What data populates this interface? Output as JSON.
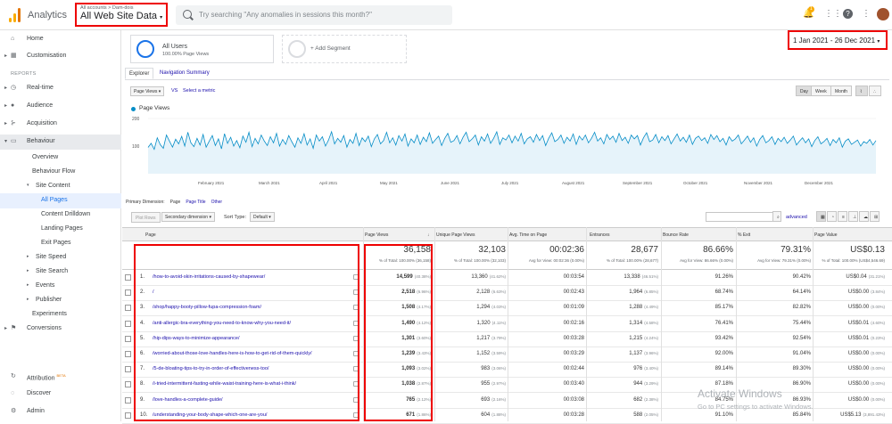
{
  "topbar": {
    "app_name": "Analytics",
    "account_crumb": "All accounts > Dam-dois",
    "property": "All Web Site Data",
    "search_placeholder": "Try searching \"Any anomalies in sessions this month?\"",
    "notif_count": "1"
  },
  "sidebar": {
    "home": "Home",
    "customisation": "Customisation",
    "reports_label": "REPORTS",
    "realtime": "Real-time",
    "audience": "Audience",
    "acquisition": "Acquisition",
    "behaviour": "Behaviour",
    "overview": "Overview",
    "behaviour_flow": "Behaviour Flow",
    "site_content": "Site Content",
    "all_pages": "All Pages",
    "content_drilldown": "Content Drilldown",
    "landing_pages": "Landing Pages",
    "exit_pages": "Exit Pages",
    "site_speed": "Site Speed",
    "site_search": "Site Search",
    "events": "Events",
    "publisher": "Publisher",
    "experiments": "Experiments",
    "conversions": "Conversions",
    "attribution": "Attribution",
    "attribution_badge": "BETA",
    "discover": "Discover",
    "admin": "Admin"
  },
  "segments": {
    "all_users": "All Users",
    "all_users_sub": "100.00% Page Views",
    "add_segment": "+ Add Segment"
  },
  "date_range": "1 Jan 2021 - 26 Dec 2021",
  "tabs": [
    "Explorer",
    "Navigation Summary"
  ],
  "controls": {
    "metric": "Page Views",
    "vs": "VS",
    "select_metric": "Select a metric",
    "day": "Day",
    "week": "Week",
    "month": "Month"
  },
  "chart_data": {
    "type": "line",
    "legend": "Page Views",
    "y_ticks": [
      "200",
      "100"
    ],
    "ylim": [
      0,
      200
    ],
    "x_labels": [
      "February 2021",
      "March 2021",
      "April 2021",
      "May 2021",
      "June 2021",
      "July 2021",
      "August 2021",
      "September 2021",
      "October 2021",
      "November 2021",
      "December 2021"
    ],
    "series": [
      {
        "values": [
          95,
          110,
          88,
          130,
          105,
          92,
          140,
          118,
          96,
          125,
          108,
          135,
          100,
          150,
          112,
          98,
          128,
          104,
          142,
          96,
          118,
          138,
          102,
          126,
          90,
          145,
          110,
          132,
          100,
          120,
          94,
          136,
          114,
          150,
          98,
          128,
          108,
          140,
          118,
          102,
          134,
          112,
          146,
          100,
          124,
          106,
          138,
          116,
          96,
          130,
          110,
          145,
          104,
          126,
          92,
          140,
          118,
          134,
          100,
          122,
          152,
          108,
          128,
          114,
          138,
          96,
          124,
          110,
          146,
          102,
          130,
          116,
          136,
          98,
          126,
          142,
          108,
          120,
          150,
          112,
          130,
          104,
          138,
          118,
          144,
          100,
          126,
          112,
          140,
          106,
          132,
          116,
          148,
          110,
          124,
          136,
          102,
          128,
          146,
          114,
          120,
          138,
          108,
          132,
          150,
          116,
          126,
          140,
          104,
          134,
          118,
          144,
          110,
          128,
          152,
          106,
          130,
          122,
          140,
          112,
          136,
          118,
          146,
          108,
          126,
          134,
          114,
          142,
          120,
          138,
          102,
          128,
          148,
          116,
          124,
          140,
          110,
          132,
          118,
          144,
          106,
          136,
          122,
          140,
          112,
          128,
          150,
          118,
          130,
          108,
          142,
          124,
          136,
          114,
          146,
          120,
          132,
          110,
          140,
          126,
          138,
          104,
          130,
          148,
          116,
          122,
          142,
          112,
          134,
          120,
          138,
          108,
          126,
          144,
          118,
          132,
          114,
          140,
          106,
          128,
          136,
          120,
          130,
          110,
          142,
          124,
          138,
          116,
          128,
          104,
          134,
          118,
          126,
          140,
          108,
          122,
          136,
          114,
          130,
          100,
          124,
          138,
          112,
          120,
          134,
          106,
          128,
          116,
          132,
          110,
          122,
          136,
          104,
          118,
          130,
          112,
          126,
          98,
          120,
          134,
          108,
          116,
          128,
          102,
          124,
          112,
          130,
          96,
          118,
          126,
          106,
          114,
          122,
          100,
          116,
          110,
          124,
          104,
          120
        ]
      }
    ]
  },
  "primary_dimension": {
    "label": "Primary Dimension:",
    "page": "Page",
    "page_title": "Page Title",
    "other": "Other"
  },
  "filter": {
    "plot_rows": "Plot Rows",
    "secondary_dim": "Secondary dimension",
    "sort_type_label": "Sort Type:",
    "sort_type": "Default",
    "advanced": "advanced"
  },
  "table": {
    "headers": [
      "Page",
      "Page Views",
      "Unique Page Views",
      "Avg. Time on Page",
      "Entrances",
      "Bounce Rate",
      "% Exit",
      "Page Value"
    ],
    "totals": {
      "page_views": "36,158",
      "page_views_sub": "% of Total: 100.00% (36,158)",
      "unique": "32,103",
      "unique_sub": "% of Total: 100.00% (32,103)",
      "avg_time": "00:02:36",
      "avg_time_sub": "Avg for View: 00:02:36 (0.00%)",
      "entrances": "28,677",
      "entrances_sub": "% of Total: 100.00% (28,677)",
      "bounce": "86.66%",
      "bounce_sub": "Avg for View: 86.66% (0.00%)",
      "exit": "79.31%",
      "exit_sub": "Avg for View: 79.31% (0.00%)",
      "value": "US$0.13",
      "value_sub": "% of Total: 100.00% (US$4,546.69)"
    },
    "rows": [
      {
        "idx": "1.",
        "page": "/how-to-avoid-skin-irritations-caused-by-shapewear/",
        "pv": "14,599",
        "pv_pct": "(40.38%)",
        "upv": "13,360",
        "upv_pct": "(41.62%)",
        "avg": "00:03:54",
        "ent": "13,338",
        "ent_pct": "(46.51%)",
        "bounce": "91.26%",
        "exit": "90.42%",
        "value": "US$0.04",
        "value_pct": "(31.21%)"
      },
      {
        "idx": "2.",
        "page": "/",
        "pv": "2,518",
        "pv_pct": "(6.96%)",
        "upv": "2,128",
        "upv_pct": "(6.63%)",
        "avg": "00:02:43",
        "ent": "1,964",
        "ent_pct": "(6.85%)",
        "bounce": "68.74%",
        "exit": "64.14%",
        "value": "US$0.00",
        "value_pct": "(3.84%)"
      },
      {
        "idx": "3.",
        "page": "/shop/happy-booty-pillow-fupa-compression-foam/",
        "pv": "1,508",
        "pv_pct": "(4.17%)",
        "upv": "1,294",
        "upv_pct": "(4.03%)",
        "avg": "00:01:09",
        "ent": "1,288",
        "ent_pct": "(4.49%)",
        "bounce": "85.17%",
        "exit": "82.82%",
        "value": "US$0.00",
        "value_pct": "(0.00%)"
      },
      {
        "idx": "4.",
        "page": "/anti-allergic-bra-everything-you-need-to-know-why-you-need-it/",
        "pv": "1,490",
        "pv_pct": "(4.12%)",
        "upv": "1,320",
        "upv_pct": "(4.11%)",
        "avg": "00:02:16",
        "ent": "1,314",
        "ent_pct": "(4.58%)",
        "bounce": "76.41%",
        "exit": "75.44%",
        "value": "US$0.01",
        "value_pct": "(4.60%)"
      },
      {
        "idx": "5.",
        "page": "/hip-dips-ways-to-minimize-appearance/",
        "pv": "1,301",
        "pv_pct": "(3.60%)",
        "upv": "1,217",
        "upv_pct": "(3.79%)",
        "avg": "00:03:28",
        "ent": "1,215",
        "ent_pct": "(4.24%)",
        "bounce": "93.42%",
        "exit": "92.54%",
        "value": "US$0.01",
        "value_pct": "(0.23%)"
      },
      {
        "idx": "6.",
        "page": "/worried-about-those-love-handles-here-is-how-to-get-rid-of-them-quickly/",
        "pv": "1,239",
        "pv_pct": "(3.43%)",
        "upv": "1,152",
        "upv_pct": "(3.59%)",
        "avg": "00:03:29",
        "ent": "1,137",
        "ent_pct": "(3.96%)",
        "bounce": "92.00%",
        "exit": "91.04%",
        "value": "US$0.00",
        "value_pct": "(0.00%)"
      },
      {
        "idx": "7.",
        "page": "/5-de-bloating-tips-to-try-in-order-of-effectiveness-too/",
        "pv": "1,093",
        "pv_pct": "(3.02%)",
        "upv": "983",
        "upv_pct": "(3.06%)",
        "avg": "00:02:44",
        "ent": "976",
        "ent_pct": "(3.40%)",
        "bounce": "89.14%",
        "exit": "89.30%",
        "value": "US$0.00",
        "value_pct": "(0.00%)"
      },
      {
        "idx": "8.",
        "page": "/i-tried-intermittent-fasting-while-waist-training-here-is-what-i-think/",
        "pv": "1,038",
        "pv_pct": "(2.87%)",
        "upv": "955",
        "upv_pct": "(2.97%)",
        "avg": "00:03:40",
        "ent": "944",
        "ent_pct": "(3.29%)",
        "bounce": "87.18%",
        "exit": "86.90%",
        "value": "US$0.00",
        "value_pct": "(0.00%)"
      },
      {
        "idx": "9.",
        "page": "/love-handles-a-complete-guide/",
        "pv": "765",
        "pv_pct": "(2.12%)",
        "upv": "693",
        "upv_pct": "(2.16%)",
        "avg": "00:03:08",
        "ent": "682",
        "ent_pct": "(2.38%)",
        "bounce": "84.75%",
        "exit": "86.93%",
        "value": "US$0.00",
        "value_pct": "(0.00%)"
      },
      {
        "idx": "10.",
        "page": "/understanding-your-body-shape-which-one-are-you/",
        "pv": "671",
        "pv_pct": "(1.86%)",
        "upv": "604",
        "upv_pct": "(1.88%)",
        "avg": "00:03:28",
        "ent": "588",
        "ent_pct": "(2.05%)",
        "bounce": "91.10%",
        "exit": "85.84%",
        "value": "US$5.13",
        "value_pct": "(3,891.43%)"
      }
    ]
  },
  "watermark": {
    "title": "Activate Windows",
    "sub": "Go to PC settings to activate Windows."
  }
}
